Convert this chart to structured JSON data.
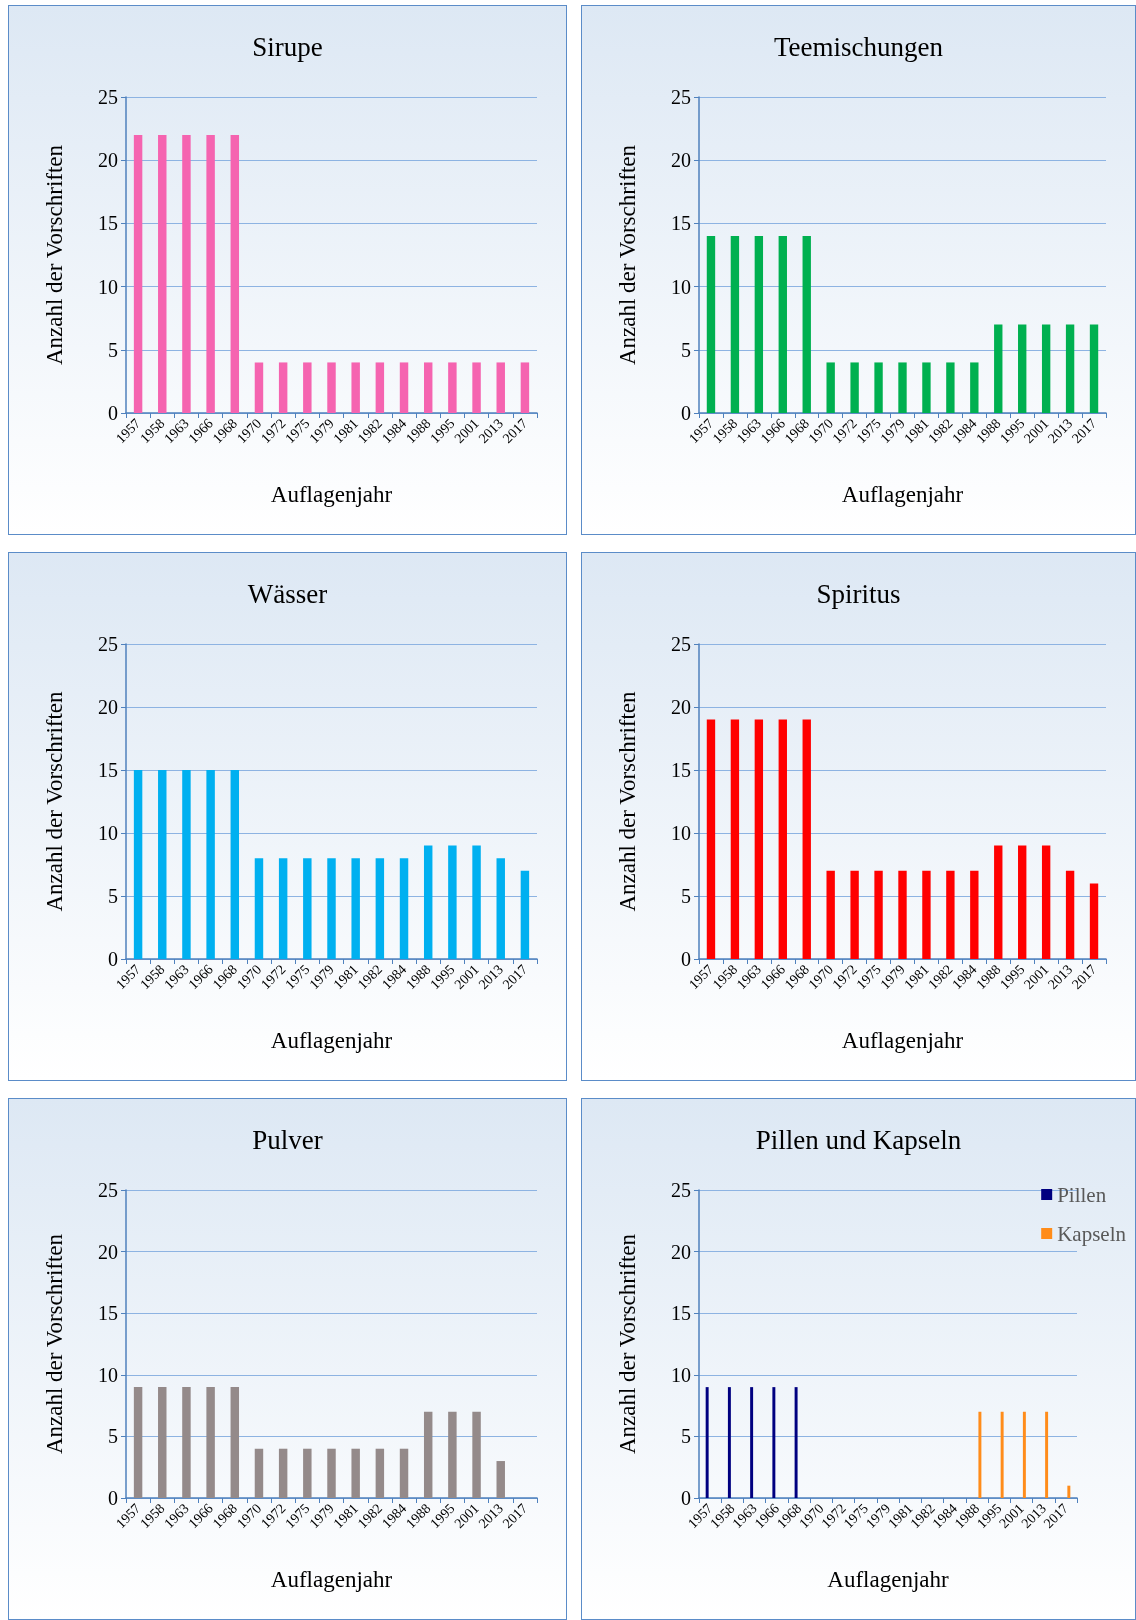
{
  "chart_data": [
    {
      "type": "bar",
      "title": "Sirupe",
      "xlabel": "Auflagenjahr",
      "ylabel": "Anzahl der Vorschriften",
      "categories": [
        "1957",
        "1958",
        "1963",
        "1966",
        "1968",
        "1970",
        "1972",
        "1975",
        "1979",
        "1981",
        "1982",
        "1984",
        "1988",
        "1995",
        "2001",
        "2013",
        "2017"
      ],
      "values": [
        22,
        22,
        22,
        22,
        22,
        4,
        4,
        4,
        4,
        4,
        4,
        4,
        4,
        4,
        4,
        4,
        4
      ],
      "color": "#f564b0",
      "ylim": [
        0,
        25
      ],
      "yticks": [
        0,
        5,
        10,
        15,
        20,
        25
      ],
      "grid": "y"
    },
    {
      "type": "bar",
      "title": "Teemischungen",
      "xlabel": "Auflagenjahr",
      "ylabel": "Anzahl der Vorschriften",
      "categories": [
        "1957",
        "1958",
        "1963",
        "1966",
        "1968",
        "1970",
        "1972",
        "1975",
        "1979",
        "1981",
        "1982",
        "1984",
        "1988",
        "1995",
        "2001",
        "2013",
        "2017"
      ],
      "values": [
        14,
        14,
        14,
        14,
        14,
        4,
        4,
        4,
        4,
        4,
        4,
        4,
        7,
        7,
        7,
        7,
        7
      ],
      "color": "#00b050",
      "ylim": [
        0,
        25
      ],
      "yticks": [
        0,
        5,
        10,
        15,
        20,
        25
      ],
      "grid": "y"
    },
    {
      "type": "bar",
      "title": "Wässer",
      "xlabel": "Auflagenjahr",
      "ylabel": "Anzahl der Vorschriften",
      "categories": [
        "1957",
        "1958",
        "1963",
        "1966",
        "1968",
        "1970",
        "1972",
        "1975",
        "1979",
        "1981",
        "1982",
        "1984",
        "1988",
        "1995",
        "2001",
        "2013",
        "2017"
      ],
      "values": [
        15,
        15,
        15,
        15,
        15,
        8,
        8,
        8,
        8,
        8,
        8,
        8,
        9,
        9,
        9,
        8,
        7
      ],
      "color": "#00b0f0",
      "ylim": [
        0,
        25
      ],
      "yticks": [
        0,
        5,
        10,
        15,
        20,
        25
      ],
      "grid": "y"
    },
    {
      "type": "bar",
      "title": "Spiritus",
      "xlabel": "Auflagenjahr",
      "ylabel": "Anzahl der Vorschriften",
      "categories": [
        "1957",
        "1958",
        "1963",
        "1966",
        "1968",
        "1970",
        "1972",
        "1975",
        "1979",
        "1981",
        "1982",
        "1984",
        "1988",
        "1995",
        "2001",
        "2013",
        "2017"
      ],
      "values": [
        19,
        19,
        19,
        19,
        19,
        7,
        7,
        7,
        7,
        7,
        7,
        7,
        9,
        9,
        9,
        7,
        6
      ],
      "color": "#ff0000",
      "ylim": [
        0,
        25
      ],
      "yticks": [
        0,
        5,
        10,
        15,
        20,
        25
      ],
      "grid": "y"
    },
    {
      "type": "bar",
      "title": "Pulver",
      "xlabel": "Auflagenjahr",
      "ylabel": "Anzahl der Vorschriften",
      "categories": [
        "1957",
        "1958",
        "1963",
        "1966",
        "1968",
        "1970",
        "1972",
        "1975",
        "1979",
        "1981",
        "1982",
        "1984",
        "1988",
        "1995",
        "2001",
        "2013",
        "2017"
      ],
      "values": [
        9,
        9,
        9,
        9,
        9,
        4,
        4,
        4,
        4,
        4,
        4,
        4,
        7,
        7,
        7,
        3,
        0
      ],
      "color": "#948a8a",
      "ylim": [
        0,
        25
      ],
      "yticks": [
        0,
        5,
        10,
        15,
        20,
        25
      ],
      "grid": "y"
    },
    {
      "type": "bar",
      "title": "Pillen und Kapseln",
      "xlabel": "Auflagenjahr",
      "ylabel": "Anzahl der Vorschriften",
      "categories": [
        "1957",
        "1958",
        "1963",
        "1966",
        "1968",
        "1970",
        "1972",
        "1975",
        "1979",
        "1981",
        "1982",
        "1984",
        "1988",
        "1995",
        "2001",
        "2013",
        "2017"
      ],
      "series": [
        {
          "name": "Pillen",
          "color": "#000080",
          "values": [
            9,
            9,
            9,
            9,
            9,
            0,
            0,
            0,
            0,
            0,
            0,
            0,
            0,
            0,
            0,
            0,
            0
          ]
        },
        {
          "name": "Kapseln",
          "color": "#ff8c1a",
          "values": [
            0,
            0,
            0,
            0,
            0,
            0,
            0,
            0,
            0,
            0,
            0,
            0,
            7,
            7,
            7,
            7,
            1
          ]
        }
      ],
      "ylim": [
        0,
        25
      ],
      "yticks": [
        0,
        5,
        10,
        15,
        20,
        25
      ],
      "grid": "y",
      "legend": "top right"
    }
  ]
}
